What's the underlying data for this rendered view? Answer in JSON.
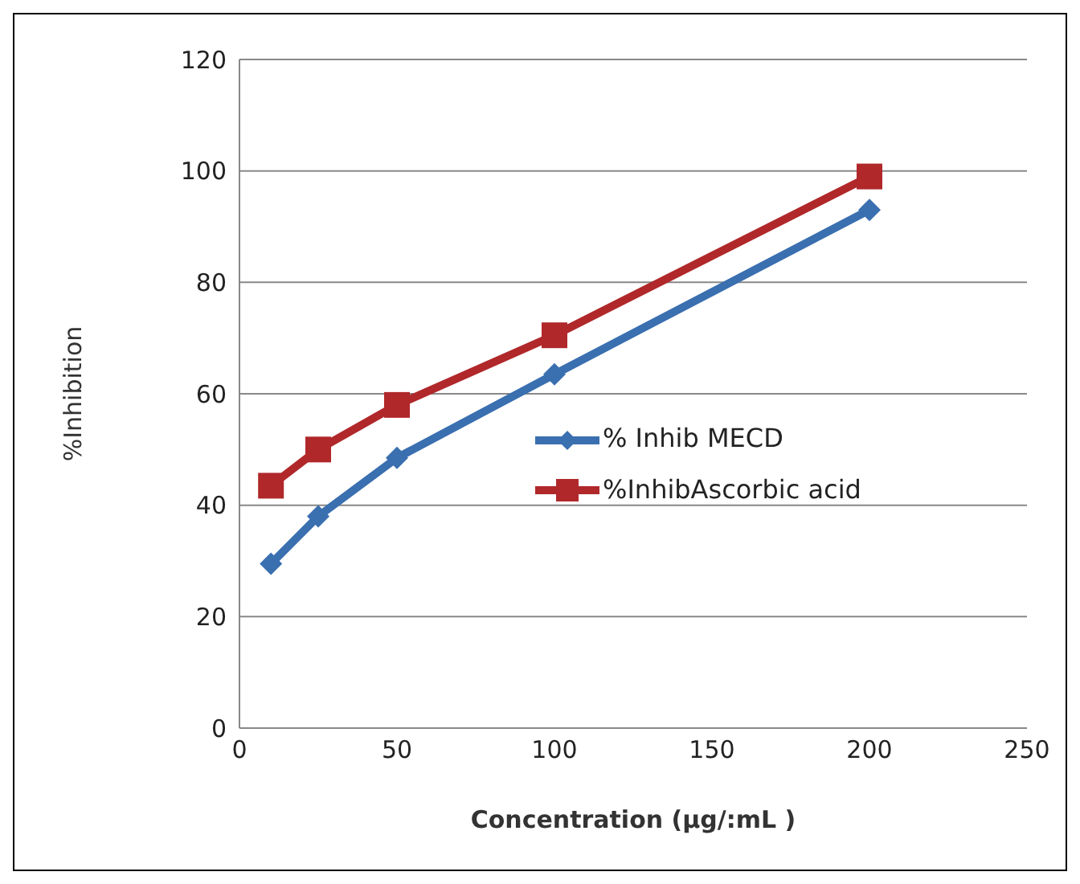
{
  "chart_data": {
    "type": "line",
    "xlabel": "Concentration (µg/:mL )",
    "ylabel": "%Inhibition",
    "x": [
      10,
      25,
      50,
      100,
      200
    ],
    "series": [
      {
        "name": "% Inhib MECD",
        "color": "#3a6fb0",
        "marker": "diamond",
        "values": [
          29.5,
          38,
          48.5,
          63.5,
          93
        ]
      },
      {
        "name": "%InhibAscorbic acid",
        "color": "#b0282a",
        "marker": "square",
        "values": [
          43.5,
          50,
          58,
          70.5,
          99
        ]
      }
    ],
    "xlim": [
      0,
      250
    ],
    "xticks": [
      0,
      50,
      100,
      150,
      200,
      250
    ],
    "ylim": [
      0,
      120
    ],
    "yticks": [
      0,
      20,
      40,
      60,
      80,
      100,
      120
    ],
    "grid": "y",
    "legend": "right"
  }
}
